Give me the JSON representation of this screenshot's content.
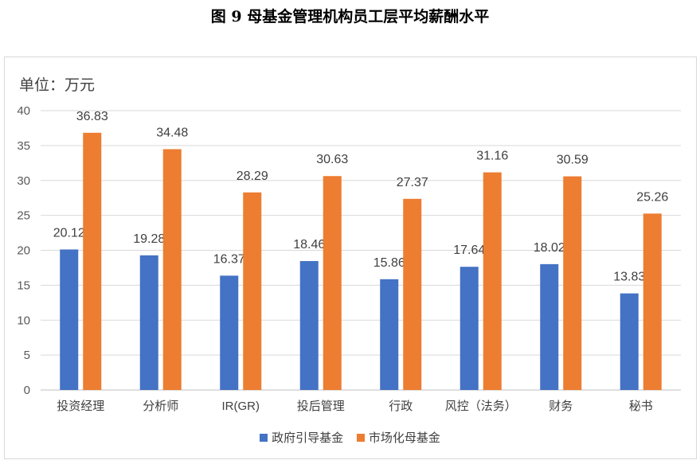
{
  "figure_title": "图 9  母基金管理机构员工层平均薪酬水平",
  "chart_data": {
    "type": "bar",
    "unit_label": "单位：万元",
    "categories": [
      "投资经理",
      "分析师",
      "IR(GR)",
      "投后管理",
      "行政",
      "风控（法务）",
      "财务",
      "秘书"
    ],
    "series": [
      {
        "name": "政府引导基金",
        "color": "#4472c4",
        "values": [
          20.12,
          19.28,
          16.37,
          18.46,
          15.86,
          17.64,
          18.02,
          13.83
        ]
      },
      {
        "name": "市场化母基金",
        "color": "#ed7d31",
        "values": [
          36.83,
          34.48,
          28.29,
          30.63,
          27.37,
          31.16,
          30.59,
          25.26
        ]
      }
    ],
    "ylim": [
      0,
      40
    ],
    "yticks": [
      0,
      5,
      10,
      15,
      20,
      25,
      30,
      35,
      40
    ],
    "grid": true,
    "legend_position": "bottom"
  }
}
